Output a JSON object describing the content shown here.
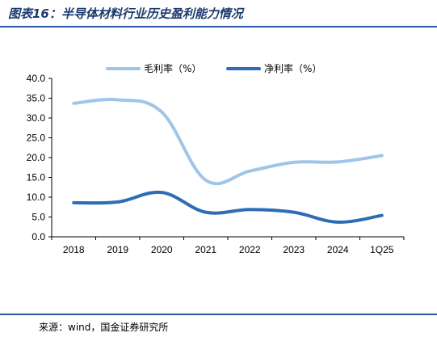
{
  "title": "图表16：半导体材料行业历史盈利能力情况",
  "source": "来源：wind，国金证券研究所",
  "colors": {
    "gross": "#9fc5e8",
    "net": "#2e6db4",
    "rule": "#2a5aa0",
    "title": "#1a3a6b"
  },
  "chart_data": {
    "type": "line",
    "title": "",
    "xlabel": "",
    "ylabel": "",
    "categories": [
      "2018",
      "2019",
      "2020",
      "2021",
      "2022",
      "2023",
      "2024",
      "1Q25"
    ],
    "ylim": [
      0,
      40
    ],
    "yticks": [
      "0.0",
      "5.0",
      "10.0",
      "15.0",
      "20.0",
      "25.0",
      "30.0",
      "35.0",
      "40.0"
    ],
    "grid": false,
    "legend": "top",
    "series": [
      {
        "name": "毛利率（%）",
        "values": [
          33.7,
          34.6,
          31.5,
          14.3,
          16.6,
          18.8,
          18.9,
          20.5
        ]
      },
      {
        "name": "净利率（%）",
        "values": [
          8.6,
          8.8,
          11.2,
          6.2,
          6.9,
          6.2,
          3.7,
          5.4
        ]
      }
    ]
  }
}
